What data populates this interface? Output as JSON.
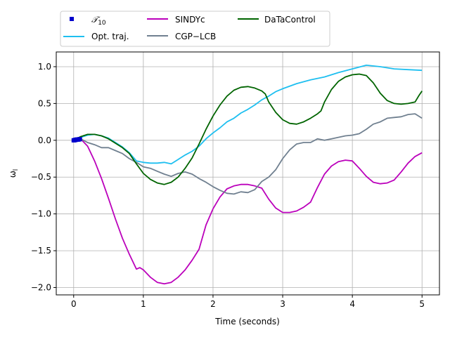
{
  "chart_data": {
    "type": "line",
    "xlabel": "Time (seconds)",
    "ylabel": "ω",
    "ylabel_subscript": "l",
    "xlim": [
      -0.25,
      5.25
    ],
    "ylim": [
      -2.1,
      1.2
    ],
    "xticks": [
      0,
      1,
      2,
      3,
      4,
      5
    ],
    "yticks": [
      -2.0,
      -1.5,
      -1.0,
      -0.5,
      0.0,
      0.5,
      1.0
    ],
    "xtick_labels": [
      "0",
      "1",
      "2",
      "3",
      "4",
      "5"
    ],
    "ytick_labels": [
      "−2.0",
      "−1.5",
      "−1.0",
      "−0.5",
      "0.0",
      "0.5",
      "1.0"
    ],
    "grid": true,
    "legend_position": "top-center",
    "series": [
      {
        "name": "𝒯",
        "name_subscript": "10",
        "color": "#0000cc",
        "marker": "square",
        "x": [
          0.0,
          0.01,
          0.02,
          0.03,
          0.04,
          0.05,
          0.06,
          0.07,
          0.08,
          0.09
        ],
        "y": [
          0.0,
          0.0,
          0.005,
          0.005,
          0.01,
          0.01,
          0.01,
          0.01,
          0.015,
          0.015
        ]
      },
      {
        "name": "Opt. traj.",
        "color": "#1ebff0",
        "x": [
          0.0,
          0.1,
          0.2,
          0.3,
          0.4,
          0.5,
          0.6,
          0.7,
          0.8,
          0.9,
          1.0,
          1.1,
          1.2,
          1.3,
          1.4,
          1.5,
          1.6,
          1.7,
          1.8,
          1.9,
          2.0,
          2.1,
          2.2,
          2.3,
          2.4,
          2.5,
          2.6,
          2.7,
          2.8,
          2.9,
          3.0,
          3.2,
          3.4,
          3.6,
          3.8,
          4.0,
          4.2,
          4.4,
          4.6,
          4.8,
          5.0
        ],
        "y": [
          0.0,
          0.04,
          0.07,
          0.08,
          0.06,
          0.03,
          -0.03,
          -0.09,
          -0.17,
          -0.28,
          -0.3,
          -0.31,
          -0.31,
          -0.3,
          -0.32,
          -0.26,
          -0.2,
          -0.15,
          -0.08,
          0.02,
          0.1,
          0.17,
          0.25,
          0.3,
          0.37,
          0.42,
          0.48,
          0.55,
          0.6,
          0.66,
          0.7,
          0.77,
          0.82,
          0.86,
          0.92,
          0.97,
          1.02,
          1.0,
          0.97,
          0.96,
          0.95
        ]
      },
      {
        "name": "SINDYc",
        "color": "#bb00bb",
        "x": [
          0.0,
          0.1,
          0.2,
          0.3,
          0.4,
          0.5,
          0.6,
          0.7,
          0.8,
          0.9,
          0.95,
          1.0,
          1.1,
          1.2,
          1.3,
          1.4,
          1.5,
          1.6,
          1.7,
          1.8,
          1.9,
          2.0,
          2.1,
          2.2,
          2.3,
          2.4,
          2.5,
          2.6,
          2.7,
          2.8,
          2.9,
          3.0,
          3.1,
          3.2,
          3.3,
          3.4,
          3.5,
          3.6,
          3.7,
          3.8,
          3.9,
          4.0,
          4.1,
          4.2,
          4.3,
          4.4,
          4.5,
          4.6,
          4.7,
          4.8,
          4.9,
          5.0
        ],
        "y": [
          0.0,
          0.02,
          -0.08,
          -0.28,
          -0.52,
          -0.79,
          -1.07,
          -1.33,
          -1.55,
          -1.75,
          -1.73,
          -1.76,
          -1.86,
          -1.93,
          -1.95,
          -1.93,
          -1.86,
          -1.76,
          -1.63,
          -1.48,
          -1.15,
          -0.93,
          -0.77,
          -0.66,
          -0.62,
          -0.6,
          -0.6,
          -0.62,
          -0.65,
          -0.8,
          -0.92,
          -0.98,
          -0.98,
          -0.96,
          -0.91,
          -0.84,
          -0.64,
          -0.46,
          -0.35,
          -0.29,
          -0.27,
          -0.28,
          -0.38,
          -0.49,
          -0.57,
          -0.59,
          -0.58,
          -0.54,
          -0.43,
          -0.31,
          -0.22,
          -0.17
        ]
      },
      {
        "name": "CGP−LCB",
        "color": "#708090",
        "x": [
          0.0,
          0.1,
          0.2,
          0.3,
          0.4,
          0.5,
          0.6,
          0.7,
          0.8,
          0.9,
          1.0,
          1.1,
          1.2,
          1.3,
          1.4,
          1.5,
          1.6,
          1.7,
          1.8,
          1.9,
          2.0,
          2.1,
          2.2,
          2.3,
          2.4,
          2.5,
          2.6,
          2.7,
          2.8,
          2.9,
          3.0,
          3.1,
          3.2,
          3.3,
          3.4,
          3.5,
          3.6,
          3.7,
          3.8,
          3.9,
          4.0,
          4.1,
          4.2,
          4.3,
          4.4,
          4.5,
          4.6,
          4.7,
          4.8,
          4.9,
          5.0
        ],
        "y": [
          0.0,
          0.02,
          -0.03,
          -0.06,
          -0.1,
          -0.1,
          -0.14,
          -0.18,
          -0.25,
          -0.3,
          -0.36,
          -0.38,
          -0.42,
          -0.46,
          -0.49,
          -0.45,
          -0.43,
          -0.46,
          -0.52,
          -0.57,
          -0.63,
          -0.68,
          -0.72,
          -0.73,
          -0.7,
          -0.71,
          -0.67,
          -0.56,
          -0.5,
          -0.4,
          -0.25,
          -0.13,
          -0.05,
          -0.03,
          -0.03,
          0.02,
          0.0,
          0.02,
          0.04,
          0.06,
          0.07,
          0.09,
          0.15,
          0.22,
          0.25,
          0.3,
          0.31,
          0.32,
          0.35,
          0.36,
          0.3
        ]
      },
      {
        "name": "DaTaControl",
        "color": "#006400",
        "x": [
          0.0,
          0.1,
          0.2,
          0.3,
          0.4,
          0.5,
          0.6,
          0.7,
          0.8,
          0.9,
          1.0,
          1.1,
          1.2,
          1.3,
          1.4,
          1.5,
          1.6,
          1.7,
          1.8,
          1.9,
          2.0,
          2.1,
          2.2,
          2.3,
          2.4,
          2.5,
          2.6,
          2.7,
          2.75,
          2.8,
          2.9,
          3.0,
          3.1,
          3.2,
          3.3,
          3.4,
          3.5,
          3.55,
          3.6,
          3.7,
          3.8,
          3.9,
          4.0,
          4.1,
          4.2,
          4.3,
          4.4,
          4.5,
          4.6,
          4.7,
          4.8,
          4.9,
          4.95,
          5.0
        ],
        "y": [
          0.0,
          0.05,
          0.08,
          0.08,
          0.06,
          0.02,
          -0.04,
          -0.1,
          -0.18,
          -0.32,
          -0.45,
          -0.53,
          -0.58,
          -0.6,
          -0.57,
          -0.5,
          -0.38,
          -0.24,
          -0.05,
          0.15,
          0.33,
          0.48,
          0.6,
          0.68,
          0.72,
          0.73,
          0.71,
          0.67,
          0.63,
          0.52,
          0.38,
          0.28,
          0.23,
          0.22,
          0.25,
          0.3,
          0.36,
          0.4,
          0.52,
          0.69,
          0.8,
          0.86,
          0.89,
          0.9,
          0.88,
          0.78,
          0.64,
          0.54,
          0.5,
          0.49,
          0.5,
          0.52,
          0.6,
          0.67
        ]
      }
    ]
  }
}
